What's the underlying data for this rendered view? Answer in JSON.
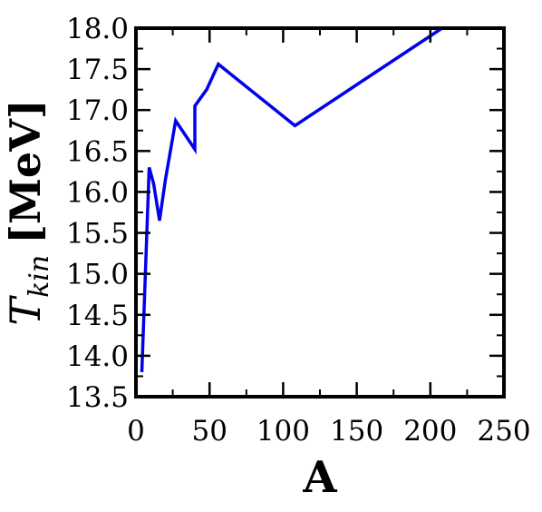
{
  "chart_data": {
    "type": "line",
    "title": "",
    "xlabel": "A",
    "ylabel": {
      "symbol": "T",
      "subscript": "kin",
      "unit": "[MeV]"
    },
    "xlim": [
      0,
      250
    ],
    "ylim": [
      13.5,
      18.0
    ],
    "x_ticks": [
      0,
      50,
      100,
      150,
      200,
      250
    ],
    "x_tick_labels": [
      "0",
      "50",
      "100",
      "150",
      "200",
      "250"
    ],
    "y_ticks": [
      13.5,
      14.0,
      14.5,
      15.0,
      15.5,
      16.0,
      16.5,
      17.0,
      17.5,
      18.0
    ],
    "y_tick_labels": [
      "13.5",
      "14.0",
      "14.5",
      "15.0",
      "15.5",
      "16.0",
      "16.5",
      "17.0",
      "17.5",
      "18.0"
    ],
    "grid": false,
    "series": [
      {
        "color": "#0000ee",
        "x": [
          4,
          9,
          12,
          16,
          20,
          27,
          40,
          40,
          48,
          56,
          108,
          208
        ],
        "y": [
          13.8,
          16.3,
          16.1,
          15.65,
          16.15,
          16.87,
          16.52,
          17.05,
          17.25,
          17.56,
          16.81,
          18.0
        ]
      }
    ]
  }
}
